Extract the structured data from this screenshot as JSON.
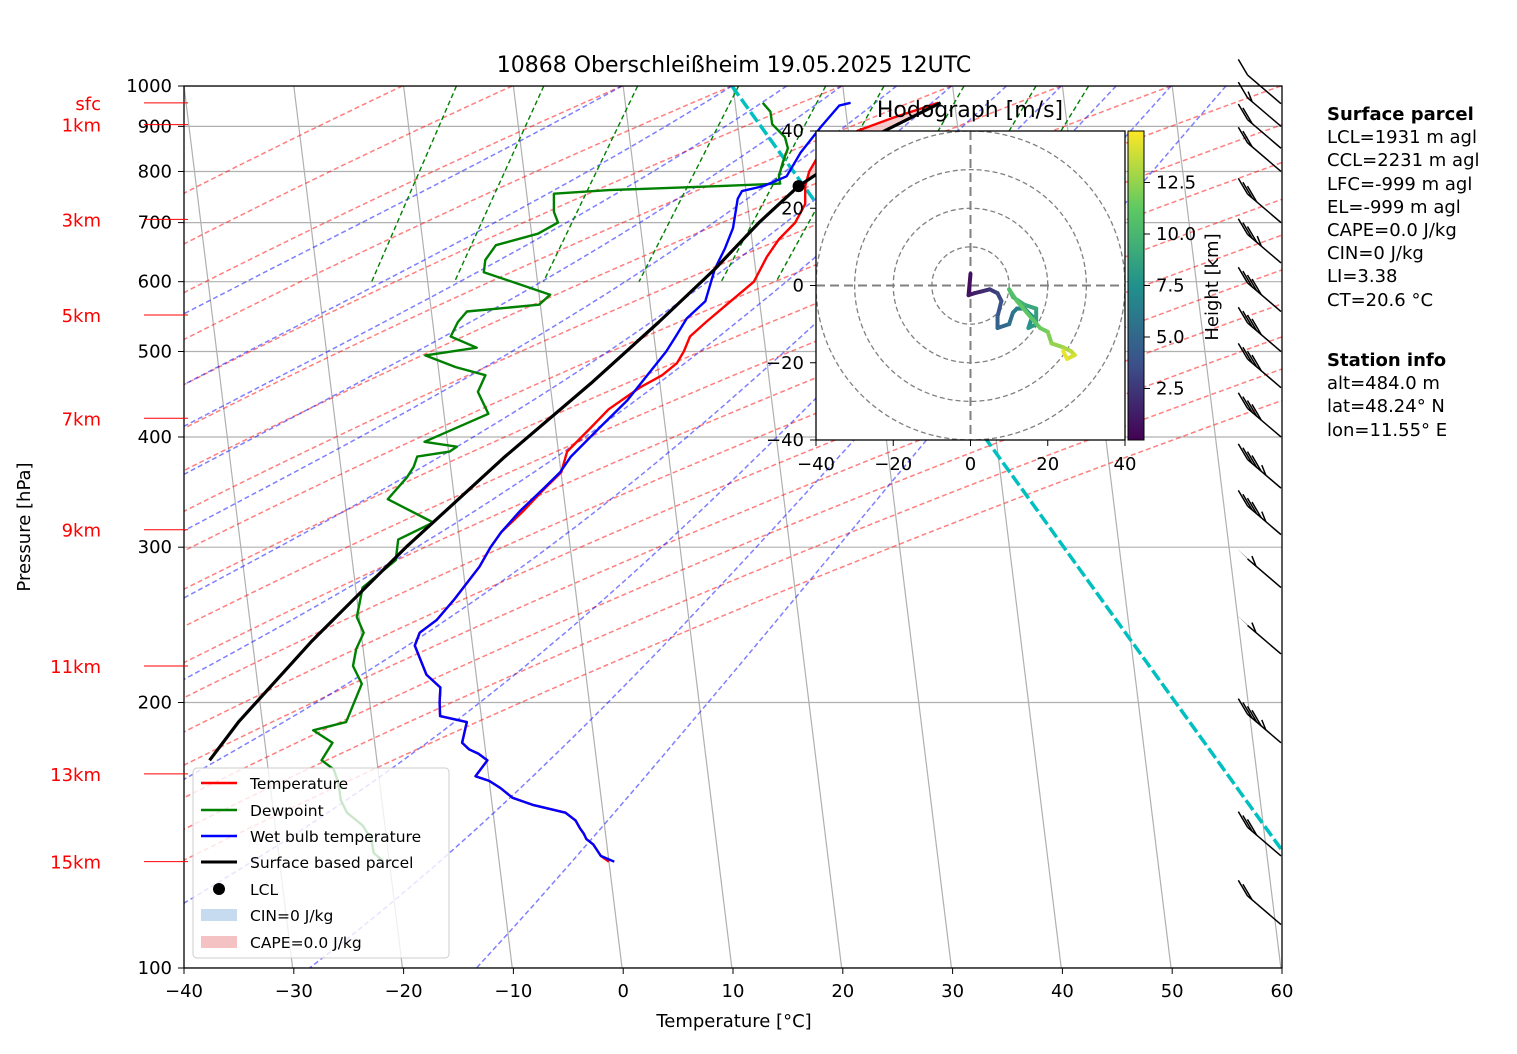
{
  "chart_data": {
    "type": "line",
    "title": "10868 Oberschleißheim 19.05.2025 12UTC",
    "xlabel": "Temperature [°C]",
    "ylabel": "Pressure [hPa]",
    "xlim": [
      -40,
      60
    ],
    "ylim": [
      1000,
      100
    ],
    "y_scale": "log",
    "x_ticks": [
      "−40",
      "−30",
      "−20",
      "−10",
      "0",
      "10",
      "20",
      "30",
      "40",
      "50",
      "60"
    ],
    "y_ticks": [
      {
        "p": 100,
        "label": "100"
      },
      {
        "p": 200,
        "label": "200"
      },
      {
        "p": 300,
        "label": "300"
      },
      {
        "p": 400,
        "label": "400"
      },
      {
        "p": 500,
        "label": "500"
      },
      {
        "p": 600,
        "label": "600"
      },
      {
        "p": 700,
        "label": "700"
      },
      {
        "p": 800,
        "label": "800"
      },
      {
        "p": 900,
        "label": "900"
      },
      {
        "p": 1000,
        "label": "1000"
      }
    ],
    "height_labels": [
      {
        "label": "15km",
        "p": 132
      },
      {
        "label": "13km",
        "p": 166
      },
      {
        "label": "11km",
        "p": 220
      },
      {
        "label": "9km",
        "p": 314
      },
      {
        "label": "7km",
        "p": 420
      },
      {
        "label": "5km",
        "p": 550
      },
      {
        "label": "3km",
        "p": 706
      },
      {
        "label": "1km",
        "p": 904
      },
      {
        "label": "sfc",
        "p": 957
      }
    ],
    "series": [
      {
        "name": "Temperature",
        "color": "#ff0000",
        "points": [
          [
            19.0,
            957
          ],
          [
            15.0,
            920
          ],
          [
            12.0,
            890
          ],
          [
            10.0,
            860
          ],
          [
            8.6,
            830
          ],
          [
            8.0,
            800
          ],
          [
            7.8,
            770
          ],
          [
            8.0,
            735
          ],
          [
            7.3,
            700
          ],
          [
            6.0,
            670
          ],
          [
            5.1,
            640
          ],
          [
            4.2,
            600
          ],
          [
            2.3,
            570
          ],
          [
            0.3,
            540
          ],
          [
            -1.0,
            520
          ],
          [
            -1.4,
            500
          ],
          [
            -1.9,
            485
          ],
          [
            -3.1,
            470
          ],
          [
            -5.0,
            455
          ],
          [
            -7.6,
            430
          ],
          [
            -9.0,
            410
          ],
          [
            -10.9,
            385
          ],
          [
            -11.2,
            365
          ],
          [
            -12.5,
            350
          ],
          [
            -14.2,
            330
          ],
          [
            -16.0,
            312
          ],
          [
            -16.8,
            300
          ],
          [
            -17.6,
            285
          ],
          [
            -19.5,
            262
          ],
          [
            -20.9,
            248
          ],
          [
            -22.3,
            240
          ],
          [
            -22.6,
            232
          ],
          [
            -21.2,
            215
          ],
          [
            -19.8,
            208
          ],
          [
            -19.7,
            200
          ],
          [
            -19.5,
            193
          ],
          [
            -17.0,
            190
          ],
          [
            -17.2,
            180
          ],
          [
            -16.5,
            177
          ],
          [
            -15.6,
            175
          ],
          [
            -14.7,
            172
          ],
          [
            -15.6,
            165
          ],
          [
            -14.3,
            163
          ],
          [
            -13.2,
            160
          ],
          [
            -12.0,
            156
          ],
          [
            -10.0,
            153
          ],
          [
            -7.0,
            150
          ],
          [
            -6.0,
            147
          ],
          [
            -5.5,
            144
          ],
          [
            -5.1,
            142
          ],
          [
            -4.8,
            140
          ],
          [
            -4.1,
            138
          ],
          [
            -3.3,
            134
          ],
          [
            -2.5,
            132
          ]
        ]
      },
      {
        "name": "Dewpoint",
        "color": "#008000",
        "points": [
          [
            3.0,
            957
          ],
          [
            3.8,
            935
          ],
          [
            4.1,
            905
          ],
          [
            5.4,
            875
          ],
          [
            5.8,
            850
          ],
          [
            5.5,
            820
          ],
          [
            5.3,
            790
          ],
          [
            5.5,
            775
          ],
          [
            0.0,
            770
          ],
          [
            -10.0,
            762
          ],
          [
            -15.0,
            755
          ],
          [
            -14.8,
            720
          ],
          [
            -14.3,
            700
          ],
          [
            -16.0,
            680
          ],
          [
            -19.7,
            660
          ],
          [
            -20.5,
            635
          ],
          [
            -20.5,
            615
          ],
          [
            -14.2,
            580
          ],
          [
            -15.1,
            565
          ],
          [
            -21.6,
            555
          ],
          [
            -22.3,
            540
          ],
          [
            -22.8,
            520
          ],
          [
            -20.3,
            505
          ],
          [
            -24.9,
            495
          ],
          [
            -22.0,
            480
          ],
          [
            -19.2,
            470
          ],
          [
            -19.7,
            450
          ],
          [
            -18.5,
            425
          ],
          [
            -24.0,
            395
          ],
          [
            -21.0,
            390
          ],
          [
            -21.6,
            385
          ],
          [
            -24.5,
            380
          ],
          [
            -24.7,
            370
          ],
          [
            -25.2,
            360
          ],
          [
            -26.7,
            340
          ],
          [
            -22.3,
            320
          ],
          [
            -25.3,
            306
          ],
          [
            -25.3,
            290
          ],
          [
            -28.0,
            270
          ],
          [
            -28.1,
            260
          ],
          [
            -28.2,
            250
          ],
          [
            -27.4,
            240
          ],
          [
            -27.9,
            230
          ],
          [
            -28.0,
            220
          ],
          [
            -27.0,
            210
          ],
          [
            -28.0,
            190
          ],
          [
            -30.9,
            186
          ],
          [
            -29.0,
            180
          ],
          [
            -29.8,
            172
          ],
          [
            -28.6,
            168
          ],
          [
            -28.0,
            162
          ],
          [
            -27.6,
            155
          ],
          [
            -26.9,
            150
          ],
          [
            -25.3,
            145
          ],
          [
            -24.4,
            140
          ],
          [
            -24.0,
            135
          ],
          [
            -23.0,
            132
          ]
        ]
      },
      {
        "name": "Wet bulb temperature",
        "color": "#0000ff",
        "points": [
          [
            11.0,
            957
          ],
          [
            10.0,
            950
          ],
          [
            8.6,
            900
          ],
          [
            7.0,
            840
          ],
          [
            6.0,
            790
          ],
          [
            4.0,
            770
          ],
          [
            2.1,
            760
          ],
          [
            1.8,
            745
          ],
          [
            1.7,
            690
          ],
          [
            1.2,
            655
          ],
          [
            0.5,
            620
          ],
          [
            0.0,
            570
          ],
          [
            -1.5,
            545
          ],
          [
            -2.3,
            520
          ],
          [
            -3.0,
            500
          ],
          [
            -4.7,
            465
          ],
          [
            -6.0,
            440
          ],
          [
            -8.2,
            410
          ],
          [
            -10.5,
            380
          ],
          [
            -11.3,
            365
          ],
          [
            -12.6,
            350
          ],
          [
            -14.5,
            330
          ],
          [
            -16.0,
            312
          ],
          [
            -16.8,
            300
          ],
          [
            -17.6,
            285
          ],
          [
            -19.5,
            262
          ],
          [
            -20.9,
            248
          ],
          [
            -22.3,
            240
          ],
          [
            -22.6,
            232
          ],
          [
            -21.2,
            215
          ],
          [
            -19.8,
            208
          ],
          [
            -19.7,
            200
          ],
          [
            -19.5,
            193
          ],
          [
            -17.0,
            190
          ],
          [
            -17.2,
            180
          ],
          [
            -16.5,
            177
          ],
          [
            -15.6,
            175
          ],
          [
            -14.7,
            172
          ],
          [
            -15.6,
            165
          ],
          [
            -14.3,
            163
          ],
          [
            -13.2,
            160
          ],
          [
            -12.0,
            156
          ],
          [
            -10.0,
            153
          ],
          [
            -7.0,
            150
          ],
          [
            -6.0,
            147
          ],
          [
            -5.5,
            144
          ],
          [
            -5.1,
            142
          ],
          [
            -4.8,
            140
          ],
          [
            -4.1,
            138
          ],
          [
            -3.3,
            134
          ],
          [
            -2.0,
            132
          ]
        ]
      },
      {
        "name": "Surface based parcel",
        "color": "#000000",
        "points": [
          [
            19.2,
            957
          ],
          [
            13.7,
            880
          ],
          [
            7.2,
            770
          ],
          [
            4.0,
            700
          ],
          [
            0.5,
            620
          ],
          [
            -4.0,
            540
          ],
          [
            -9.5,
            460
          ],
          [
            -16.5,
            380
          ],
          [
            -24.5,
            300
          ],
          [
            -32.0,
            235
          ],
          [
            -37.8,
            190
          ],
          [
            -40.0,
            172
          ]
        ]
      }
    ],
    "lcl": {
      "temperature": 7.2,
      "pressure": 770
    },
    "ccl_line": {
      "points": [
        [
          0.0,
          1000
        ],
        [
          60.0,
          130
        ]
      ]
    },
    "legend": {
      "position": "lower-left",
      "entries": [
        "Temperature",
        "Dewpoint",
        "Wet bulb temperature",
        "Surface based parcel",
        "LCL",
        "CIN=0 J/kg",
        "CAPE=0.0 J/kg"
      ]
    },
    "grid": true,
    "wind_barbs": [
      {
        "p": 955,
        "speed_kt": 10
      },
      {
        "p": 900,
        "speed_kt": 15
      },
      {
        "p": 850,
        "speed_kt": 20
      },
      {
        "p": 800,
        "speed_kt": 20
      },
      {
        "p": 700,
        "speed_kt": 30
      },
      {
        "p": 630,
        "speed_kt": 35
      },
      {
        "p": 555,
        "speed_kt": 40
      },
      {
        "p": 500,
        "speed_kt": 40
      },
      {
        "p": 455,
        "speed_kt": 40
      },
      {
        "p": 400,
        "speed_kt": 40
      },
      {
        "p": 350,
        "speed_kt": 45
      },
      {
        "p": 310,
        "speed_kt": 45
      },
      {
        "p": 270,
        "speed_kt": 55
      },
      {
        "p": 227,
        "speed_kt": 55
      },
      {
        "p": 180,
        "speed_kt": 45
      },
      {
        "p": 134,
        "speed_kt": 30
      },
      {
        "p": 112,
        "speed_kt": 20
      }
    ],
    "hodograph": {
      "title": "Hodograph [m/s]",
      "xlim": [
        -40,
        40
      ],
      "ylim": [
        -40,
        40
      ],
      "ticks": [
        "−40",
        "−20",
        "0",
        "20",
        "40"
      ],
      "tick_values": [
        -40,
        -20,
        0,
        20,
        40
      ],
      "rings": [
        10,
        20,
        30,
        40
      ],
      "colorbar": {
        "label": "Height [km]",
        "ticks": [
          "2.5",
          "5.0",
          "7.5",
          "10.0",
          "12.5"
        ],
        "tick_values": [
          2.5,
          5.0,
          7.5,
          10.0,
          12.5
        ],
        "range": [
          0,
          15
        ],
        "colormap": "viridis"
      },
      "points": [
        {
          "u": 0.0,
          "v": 3.0,
          "h": 0.4
        },
        {
          "u": -0.5,
          "v": -2.5,
          "h": 0.8
        },
        {
          "u": 1.0,
          "v": -2.0,
          "h": 1.2
        },
        {
          "u": 3.0,
          "v": -1.5,
          "h": 1.7
        },
        {
          "u": 5.0,
          "v": -1.0,
          "h": 2.3
        },
        {
          "u": 7.0,
          "v": -2.0,
          "h": 2.9
        },
        {
          "u": 8.0,
          "v": -4.0,
          "h": 3.5
        },
        {
          "u": 7.0,
          "v": -8.0,
          "h": 4.2
        },
        {
          "u": 7.0,
          "v": -11.0,
          "h": 4.8
        },
        {
          "u": 10.0,
          "v": -10.0,
          "h": 5.3
        },
        {
          "u": 11.0,
          "v": -7.0,
          "h": 5.8
        },
        {
          "u": 12.0,
          "v": -6.0,
          "h": 6.2
        },
        {
          "u": 14.0,
          "v": -6.0,
          "h": 6.7
        },
        {
          "u": 16.0,
          "v": -8.0,
          "h": 7.2
        },
        {
          "u": 15.0,
          "v": -11.0,
          "h": 7.7
        },
        {
          "u": 17.0,
          "v": -10.0,
          "h": 8.2
        },
        {
          "u": 17.0,
          "v": -6.0,
          "h": 8.7
        },
        {
          "u": 14.0,
          "v": -5.0,
          "h": 9.3
        },
        {
          "u": 11.0,
          "v": -3.0,
          "h": 9.8
        },
        {
          "u": 10.0,
          "v": -1.0,
          "h": 10.3
        },
        {
          "u": 12.0,
          "v": -4.0,
          "h": 10.8
        },
        {
          "u": 18.0,
          "v": -11.0,
          "h": 11.3
        },
        {
          "u": 20.0,
          "v": -12.0,
          "h": 11.8
        },
        {
          "u": 21.0,
          "v": -15.0,
          "h": 12.3
        },
        {
          "u": 24.0,
          "v": -16.0,
          "h": 12.8
        },
        {
          "u": 26.0,
          "v": -17.0,
          "h": 13.3
        },
        {
          "u": 27.0,
          "v": -18.0,
          "h": 13.8
        },
        {
          "u": 25.0,
          "v": -19.0,
          "h": 14.3
        },
        {
          "u": 24.0,
          "v": -17.0,
          "h": 14.7
        }
      ]
    }
  },
  "info": {
    "surface_parcel_title": "Surface parcel",
    "surface_parcel_lines": [
      "LCL=1931 m agl",
      "CCL=2231 m agl",
      "LFC=-999 m agl",
      "EL=-999 m agl",
      "CAPE=0.0 J/kg",
      "CIN=0 J/kg",
      "LI=3.38",
      "CT=20.6 °C"
    ],
    "station_title": "Station info",
    "station_lines": [
      "alt=484.0 m",
      "lat=48.24° N",
      "lon=11.55° E"
    ]
  },
  "colors": {
    "temperature": "#ff0000",
    "dewpoint": "#008000",
    "wetbulb": "#0000ff",
    "parcel": "#000000",
    "dry_adiabat": "#ff0000",
    "moist_adiabat": "#0000ff",
    "mixing_ratio": "#008000",
    "ccl_line": "#00bfbf",
    "height_labels": "#ff0000",
    "cin_fill": "#c6dbef",
    "cape_fill": "#f4c2c2"
  }
}
